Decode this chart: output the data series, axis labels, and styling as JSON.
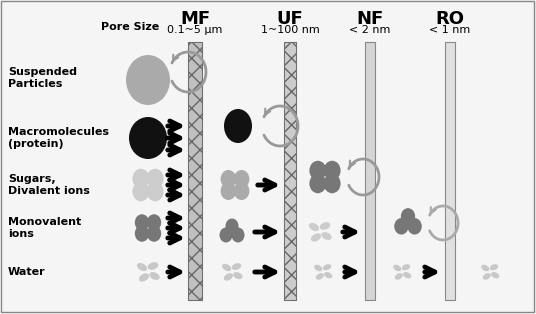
{
  "bg_color": "#f5f5f5",
  "title_labels": [
    "MF",
    "UF",
    "NF",
    "RO"
  ],
  "pore_sizes": [
    "0.1~5 μm",
    "1~100 nm",
    "< 2 nm",
    "< 1 nm"
  ],
  "row_labels": [
    "Suspended\nParticles",
    "Macromolecules\n(protein)",
    "Sugars,\nDivalent ions",
    "Monovalent\nions",
    "Water"
  ],
  "fig_width": 5.36,
  "fig_height": 3.14,
  "dpi": 100
}
